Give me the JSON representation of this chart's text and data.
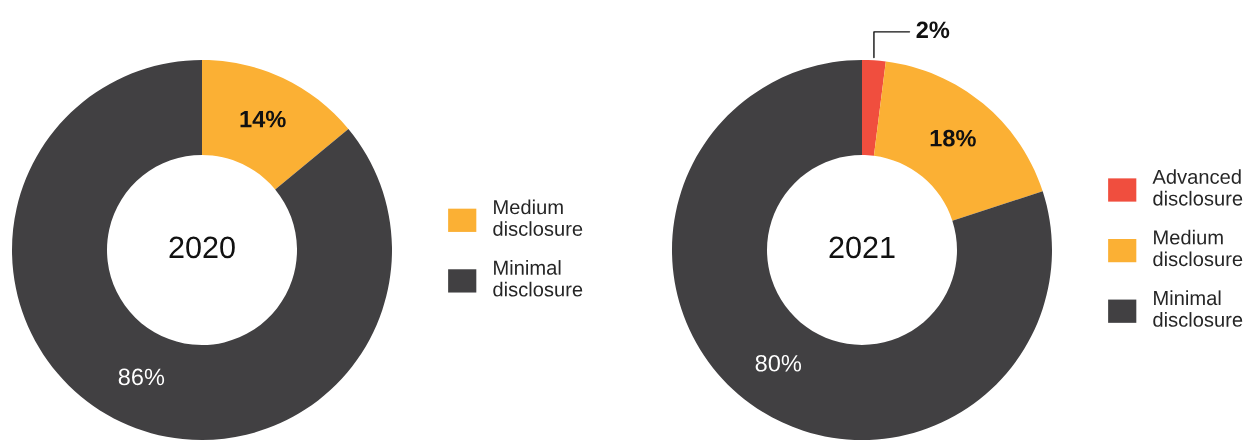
{
  "chart_data": [
    {
      "type": "donut",
      "annotations": [
        "2020"
      ],
      "categories": [
        "Medium disclosure",
        "Minimal disclosure"
      ],
      "values": [
        14,
        86
      ],
      "colors": [
        "#fbb034",
        "#414042"
      ],
      "value_labels": [
        "14%",
        "86%"
      ],
      "legend": "right"
    },
    {
      "type": "donut",
      "annotations": [
        "2021"
      ],
      "categories": [
        "Advanced disclosure",
        "Medium disclosure",
        "Minimal disclosure"
      ],
      "values": [
        2,
        18,
        80
      ],
      "colors": [
        "#f04e3e",
        "#fbb034",
        "#414042"
      ],
      "value_labels": [
        "2%",
        "18%",
        "80%"
      ],
      "legend": "right"
    }
  ]
}
